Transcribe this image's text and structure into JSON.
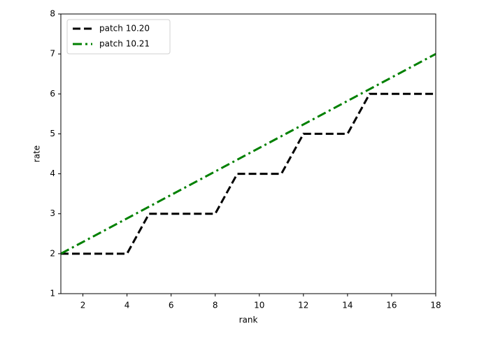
{
  "chart_data": {
    "type": "line",
    "x_label": "rank",
    "y_label": "rate",
    "series": [
      {
        "name": "patch 10.20",
        "color": "#000000",
        "linestyle": "dashed",
        "x": [
          1,
          2,
          3,
          4,
          5,
          6,
          7,
          8,
          9,
          10,
          11,
          12,
          13,
          14,
          15,
          16,
          17,
          18
        ],
        "values": [
          2,
          2,
          2,
          2,
          3,
          3,
          3,
          3,
          4,
          4,
          4,
          5,
          5,
          5,
          6,
          6,
          6,
          6
        ]
      },
      {
        "name": "patch 10.21",
        "color": "#008000",
        "linestyle": "dashdot",
        "x": [
          1,
          18
        ],
        "values": [
          2,
          7
        ]
      }
    ],
    "xlim": [
      1,
      18
    ],
    "xticks": [
      2,
      4,
      6,
      8,
      10,
      12,
      14,
      16,
      18
    ],
    "ylim": [
      1,
      8
    ],
    "yticks": [
      1,
      2,
      3,
      4,
      5,
      6,
      7,
      8
    ],
    "grid": false,
    "legend_position": "upper-left"
  }
}
